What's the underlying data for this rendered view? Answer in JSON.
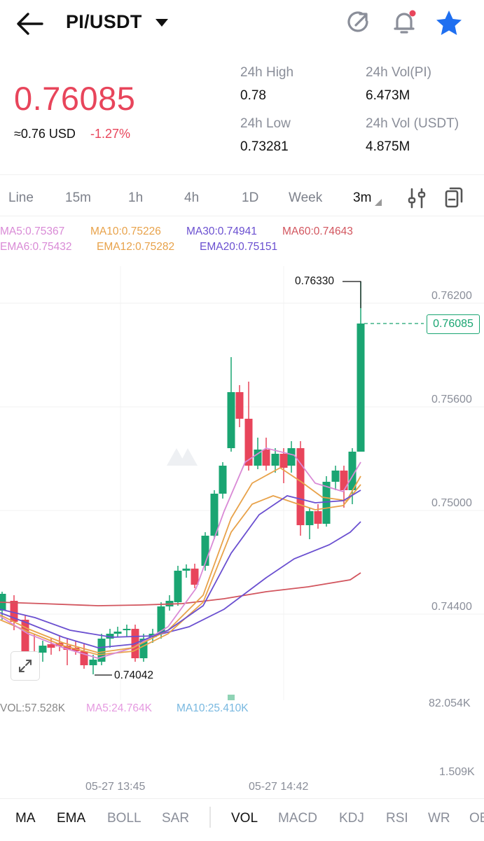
{
  "header": {
    "pair": "PI/USDT"
  },
  "price": {
    "last": "0.76085",
    "usd_approx": "≈0.76 USD",
    "change": "-1.27%"
  },
  "stats": {
    "high_label": "24h High",
    "high_value": "0.78",
    "low_label": "24h Low",
    "low_value": "0.73281",
    "vol_pi_label": "24h Vol(PI)",
    "vol_pi_value": "6.473M",
    "vol_usdt_label": "24h Vol (USDT)",
    "vol_usdt_value": "4.875M"
  },
  "timeframes": [
    "Line",
    "15m",
    "1h",
    "4h",
    "1D",
    "Week",
    "3m"
  ],
  "active_timeframe": "3m",
  "legend": {
    "ma5": "MA5:0.75367",
    "ma10": "MA10:0.75226",
    "ma30": "MA30:0.74941",
    "ma60": "MA60:0.74643",
    "ema6": "EMA6:0.75432",
    "ema12": "EMA12:0.75282",
    "ema20": "EMA20:0.75151"
  },
  "chart": {
    "y_labels": [
      "0.76200",
      "0.75600",
      "0.75000",
      "0.74400"
    ],
    "current_price_tag": "0.76085",
    "max_marker": "0.76330",
    "min_marker": "0.74042",
    "x_labels": [
      "05-27 13:45",
      "05-27 14:42"
    ],
    "vol_max": "82.054K",
    "vol_min": "1.509K"
  },
  "volume_legend": {
    "vol": "VOL:57.528K",
    "ma5": "MA5:24.764K",
    "ma10": "MA10:25.410K"
  },
  "indicators": [
    "MA",
    "EMA",
    "BOLL",
    "SAR",
    "VOL",
    "MACD",
    "KDJ",
    "RSI",
    "WR",
    "OB"
  ],
  "colors": {
    "up": "#1aa572",
    "down": "#e8455b",
    "ma5": "#d98ad6",
    "ma10": "#e8a24a",
    "ma30": "#6a4fd0",
    "ma60": "#d2555e"
  },
  "icons": [
    "back-arrow-icon",
    "share-icon",
    "bell-icon",
    "star-icon",
    "settings-sliders-icon",
    "copy-icon",
    "expand-icon"
  ]
}
